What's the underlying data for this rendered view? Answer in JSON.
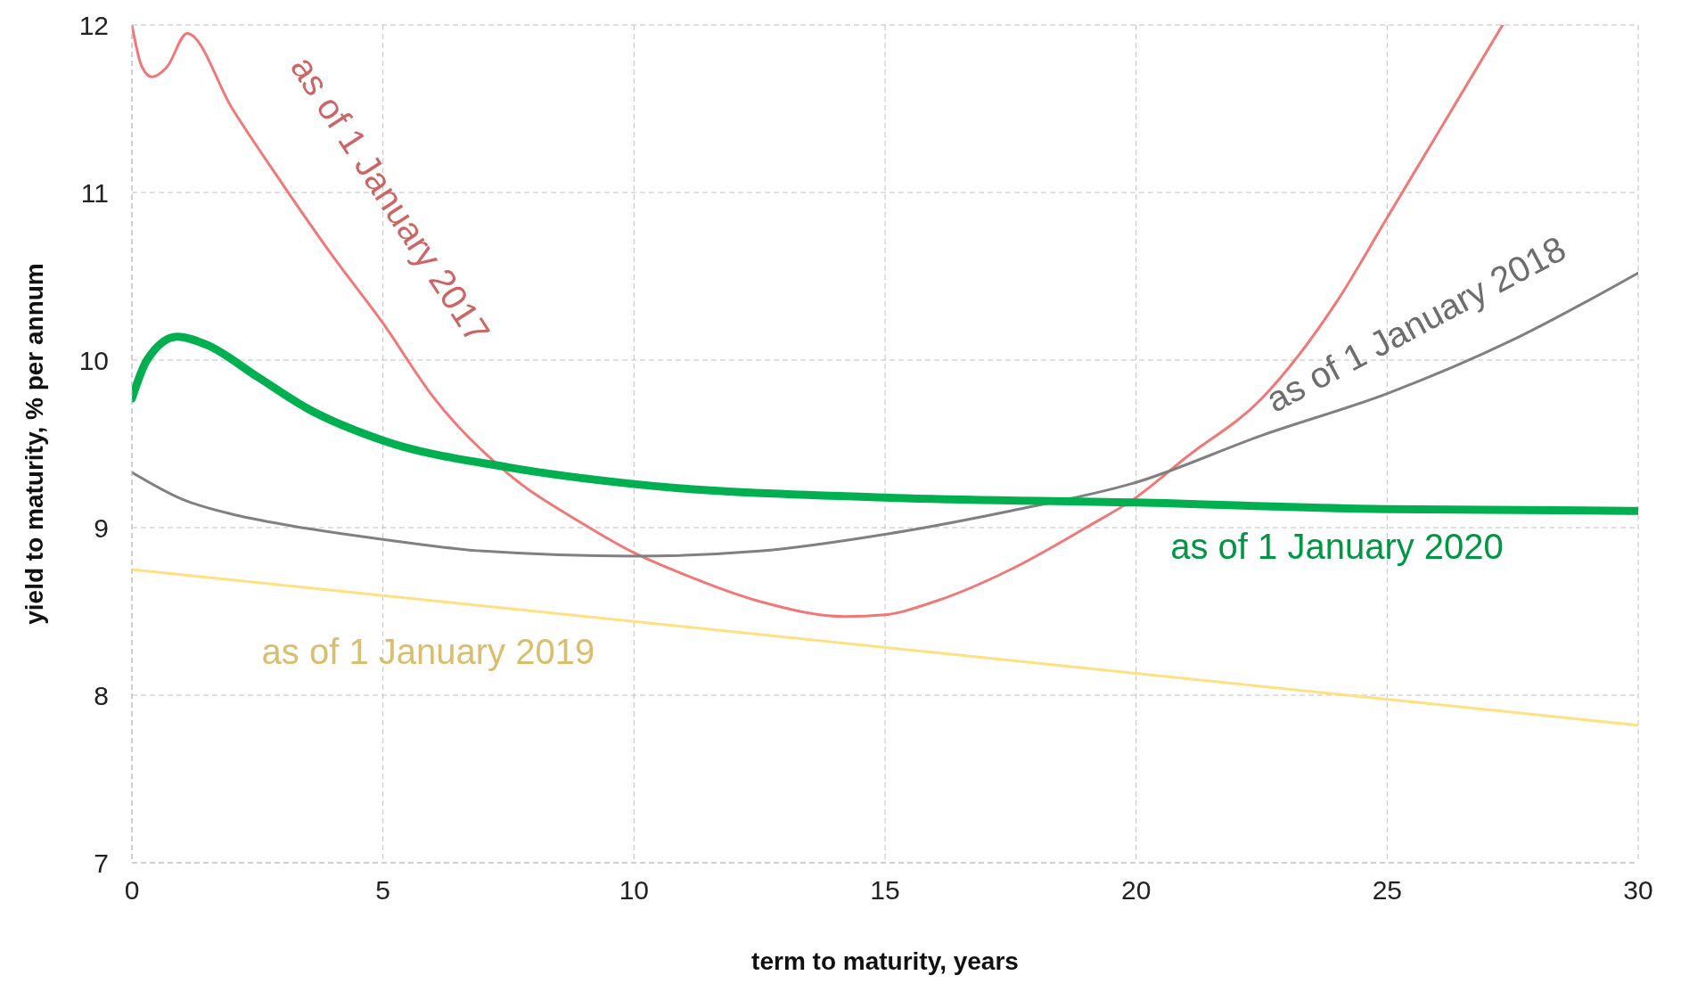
{
  "chart_data": {
    "type": "line",
    "xlabel": "term to maturity, years",
    "ylabel": "yield to maturity, % per annum",
    "xlim": [
      0,
      30
    ],
    "ylim": [
      7,
      12
    ],
    "xticks": [
      0,
      5,
      10,
      15,
      20,
      25,
      30
    ],
    "yticks": [
      7,
      8,
      9,
      10,
      11,
      12
    ],
    "grid": true,
    "marker": "none",
    "line_style": "solid",
    "series": [
      {
        "name": "as of 1 January 2017",
        "color": "#f07878",
        "x": [
          0,
          0.2,
          0.4,
          0.7,
          1.1,
          2,
          3,
          4,
          5,
          6,
          7.5,
          9,
          10,
          11,
          12.5,
          14.2,
          15,
          16,
          17.5,
          19,
          20,
          21,
          22.5,
          24,
          25,
          26,
          27.3
        ],
        "values": [
          12,
          11.75,
          11.69,
          11.75,
          11.95,
          11.5,
          11.05,
          10.62,
          10.22,
          9.78,
          9.32,
          9.02,
          8.85,
          8.72,
          8.56,
          8.47,
          8.48,
          8.56,
          8.75,
          9.0,
          9.18,
          9.42,
          9.77,
          10.35,
          10.85,
          11.35,
          12
        ]
      },
      {
        "name": "as of 1 January 2018",
        "color": "#808080",
        "x": [
          0,
          1,
          2,
          3,
          5,
          7,
          10,
          12.5,
          15,
          17.5,
          20,
          22.5,
          25,
          27.5,
          30
        ],
        "values": [
          9.33,
          9.17,
          9.08,
          9.02,
          8.93,
          8.86,
          8.83,
          8.86,
          8.96,
          9.1,
          9.27,
          9.55,
          9.8,
          10.12,
          10.52
        ]
      },
      {
        "name": "as of 1 January 2019",
        "color": "#ffe082",
        "x": [
          0,
          30
        ],
        "values": [
          8.75,
          7.82
        ]
      },
      {
        "name": "as of 1 January 2020",
        "color": "#00b050",
        "x": [
          0,
          0.3,
          0.9,
          1.5,
          2.5,
          3.5,
          5,
          7.5,
          10,
          15,
          20,
          25,
          30
        ],
        "values": [
          9.77,
          10.0,
          10.14,
          10.09,
          9.9,
          9.71,
          9.52,
          9.36,
          9.26,
          9.18,
          9.15,
          9.11,
          9.1
        ]
      }
    ]
  }
}
